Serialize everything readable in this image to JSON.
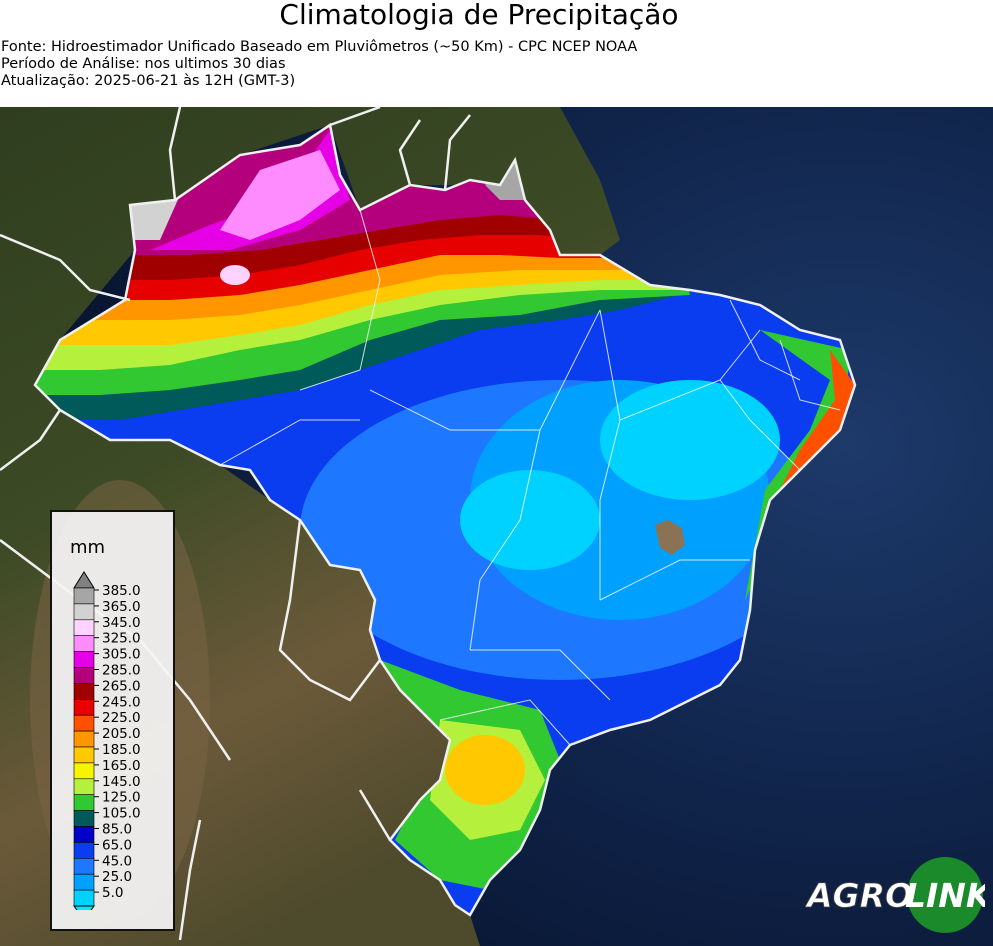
{
  "header": {
    "title": "Climatologia de Precipitação",
    "source": "Fonte: Hidroestimador Unificado Baseado em Pluviômetros (~50 Km) - CPC NCEP NOAA",
    "period": "Período de Análise: nos ultimos 30 dias",
    "updated": "Atualização: 2025-06-21 às 12H (GMT-3)"
  },
  "legend": {
    "unit": "mm",
    "levels": [
      "385.0",
      "365.0",
      "345.0",
      "325.0",
      "305.0",
      "285.0",
      "265.0",
      "245.0",
      "225.0",
      "205.0",
      "185.0",
      "165.0",
      "145.0",
      "125.0",
      "105.0",
      "85.0",
      "65.0",
      "45.0",
      "25.0",
      "5.0"
    ],
    "colors": [
      "#a6a6a6",
      "#d2d2d2",
      "#ffd2ff",
      "#ff8cff",
      "#e600e6",
      "#b4007d",
      "#a00000",
      "#e60000",
      "#ff5000",
      "#ff9600",
      "#ffc800",
      "#f5f500",
      "#b4f03c",
      "#32c832",
      "#005a5a",
      "#0000c8",
      "#0a3cf0",
      "#1e78ff",
      "#00a0ff",
      "#00d2ff"
    ]
  },
  "logo": {
    "text_left": "AGRO",
    "text_right": "LINK"
  }
}
